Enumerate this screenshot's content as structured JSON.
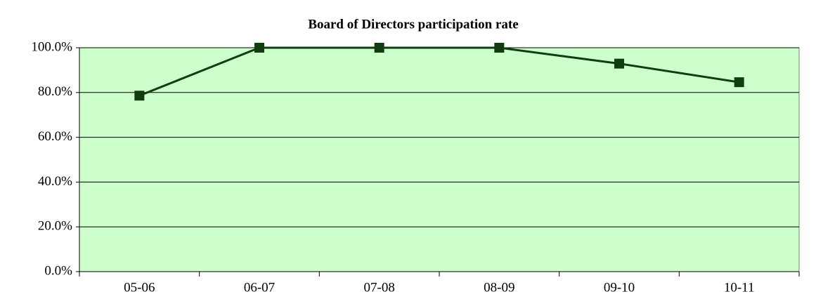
{
  "chart_data": {
    "type": "line",
    "title": "Board of Directors participation rate",
    "categories": [
      "05-06",
      "06-07",
      "07-08",
      "08-09",
      "09-10",
      "10-11"
    ],
    "values": [
      78.6,
      100,
      100,
      100,
      92.9,
      84.6
    ],
    "color": "#0f3d0f",
    "background": "#ccffcc",
    "ylim": [
      0,
      100
    ],
    "yticks": [
      {
        "value": 0,
        "label": "0.0%"
      },
      {
        "value": 20,
        "label": "20.0%"
      },
      {
        "value": 40,
        "label": "40.0%"
      },
      {
        "value": 60,
        "label": "60.0%"
      },
      {
        "value": 80,
        "label": "80.0%"
      },
      {
        "value": 100,
        "label": "100.0%"
      }
    ],
    "grid": true
  }
}
